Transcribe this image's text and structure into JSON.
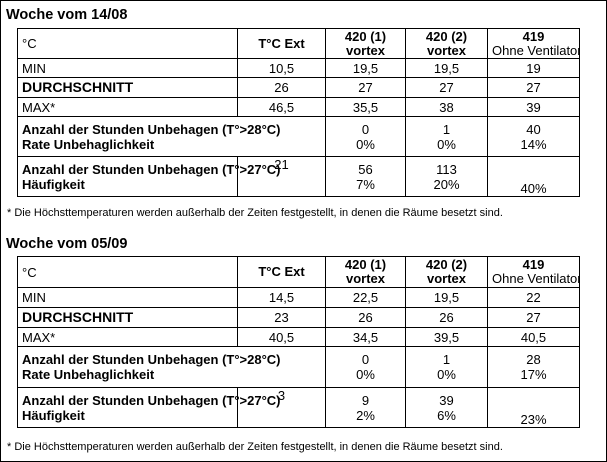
{
  "weeks": [
    {
      "title": "Woche vom 14/08",
      "header": {
        "unit": "°C",
        "ext": "T°C Ext",
        "c1_line1": "420 (1)",
        "c1_line2": "vortex",
        "c2_line1": "420 (2)",
        "c2_line2": "vortex",
        "c3_line1": "419",
        "c3_line2": "Ohne Ventilator"
      },
      "rows": {
        "min": {
          "label": "MIN",
          "ext": "10,5",
          "c1": "19,5",
          "c2": "19,5",
          "c3": "19"
        },
        "avg": {
          "label": "DURCHSCHNITT",
          "ext": "26",
          "c1": "27",
          "c2": "27",
          "c3": "27"
        },
        "max": {
          "label": "MAX*",
          "ext": "46,5",
          "c1": "35,5",
          "c2": "38",
          "c3": "39"
        },
        "disc28": {
          "label1": "Anzahl der Stunden Unbehagen (T°>28°C)",
          "label2": "Rate Unbehaglichkeit",
          "c1_a": "0",
          "c1_b": "0%",
          "c2_a": "1",
          "c2_b": "0%",
          "c3_a": "40",
          "c3_b": "14%"
        },
        "disc27": {
          "label1": "Anzahl der Stunden Unbehagen (T°>27°C)",
          "label2": "Häufigkeit",
          "ext": "21",
          "c1_a": "56",
          "c2_a": "113",
          "c1_b": "7%",
          "c2_b": "20%",
          "c3_b": "40%"
        }
      },
      "note": "* Die Höchsttemperaturen werden außerhalb der Zeiten festgestellt, in denen die Räume besetzt sind."
    },
    {
      "title": "Woche vom 05/09",
      "header": {
        "unit": "°C",
        "ext": "T°C Ext",
        "c1_line1": "420 (1)",
        "c1_line2": "vortex",
        "c2_line1": "420 (2)",
        "c2_line2": "vortex",
        "c3_line1": "419",
        "c3_line2": "Ohne Ventilator"
      },
      "rows": {
        "min": {
          "label": "MIN",
          "ext": "14,5",
          "c1": "22,5",
          "c2": "19,5",
          "c3": "22"
        },
        "avg": {
          "label": "DURCHSCHNITT",
          "ext": "23",
          "c1": "26",
          "c2": "26",
          "c3": "27"
        },
        "max": {
          "label": "MAX*",
          "ext": "40,5",
          "c1": "34,5",
          "c2": "39,5",
          "c3": "40,5"
        },
        "disc28": {
          "label1": "Anzahl der Stunden Unbehagen (T°>28°C)",
          "label2": "Rate Unbehaglichkeit",
          "c1_a": "0",
          "c1_b": "0%",
          "c2_a": "1",
          "c2_b": "0%",
          "c3_a": "28",
          "c3_b": "17%"
        },
        "disc27": {
          "label1": "Anzahl der Stunden Unbehagen (T°>27°C)",
          "label2": "Häufigkeit",
          "ext": "3",
          "c1_a": "9",
          "c2_a": "39",
          "c1_b": "2%",
          "c2_b": "6%",
          "c3_b": "23%"
        }
      },
      "note": "* Die Höchsttemperaturen werden außerhalb der Zeiten festgestellt, in denen die Räume besetzt sind."
    }
  ]
}
